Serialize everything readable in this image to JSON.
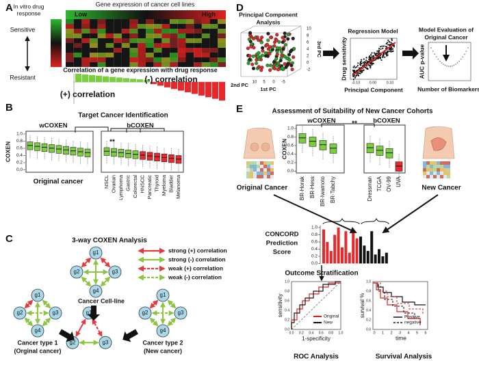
{
  "panels": {
    "a": {
      "label": "A",
      "drug_response": [
        "In vitro drug",
        "response"
      ],
      "sensitive": "Sensitive",
      "resistant": "Resistant",
      "heatmap_title": "Gene expression of cancer cell lines",
      "low": "Low",
      "high": "High",
      "correlation_title": "Correlation of a gene expression with drug response",
      "negative": "(-) correlation",
      "positive": "(+) correlation"
    },
    "b": {
      "label": "B",
      "title": "Target Cancer Identification",
      "group1": "wCOXEN",
      "group2": "bCOXEN",
      "y_axis": "COXEN",
      "yticks": [
        "1.0",
        "0.8",
        "0.6",
        "0.4",
        "0.2",
        "0.0"
      ],
      "x_label": "Original cancer",
      "significance": "**",
      "categories": [
        "NSCL",
        "Ovarian",
        "Lymphoma",
        "Gastric",
        "Colorectal",
        "HNSCC",
        "Pancreatic",
        "Thyroid",
        "Myeloma",
        "Bladder",
        "Melanoma"
      ]
    },
    "c": {
      "label": "C",
      "title": "3-way COXEN Analysis",
      "legend": [
        "strong (+) correlation",
        "strong (-) correlation",
        "weak (+) correlation",
        "weak (-) correlation"
      ],
      "nodes": [
        "g1",
        "g2",
        "g3",
        "g4"
      ],
      "cell_line": "Cancer Cell-line",
      "type1": [
        "Cancer type 1",
        "(Orginal cancer)"
      ],
      "type2": [
        "Cancer type 2",
        "(New cancer)"
      ]
    },
    "d": {
      "label": "D",
      "pca_title": [
        "Principal Component",
        "Analysis"
      ],
      "pc1": "1st PC",
      "pc2": "2nd PC",
      "pc3": "3rd PC",
      "pca_zticks": [
        "10",
        "8",
        "6",
        "4",
        "2",
        "0",
        "-2"
      ],
      "pca_xticks": [
        "10",
        "5",
        "0",
        "-5"
      ],
      "regression_title": "Regression Model",
      "regression_y": "Drug sensitivity",
      "regression_x": "Principal Component",
      "regression_xticks": [
        "-0.10",
        "0.00",
        "0.10"
      ],
      "eval_title": [
        "Model  Evaluation of",
        "Original Cancer"
      ],
      "eval_y": "AUC p-value",
      "eval_x": "Number of Biomarkers"
    },
    "e": {
      "label": "E",
      "title": "Assessment of Suitability of New Cancer Cohorts",
      "group1": "wCOXEN",
      "group2": "bCOXEN",
      "y_axis": "COXEN",
      "yticks": [
        "1.0",
        "0.8",
        "0.6",
        "0.4",
        "0.2",
        "0.0"
      ],
      "significance": "**",
      "categories": [
        "BR-Horak",
        "BR-Hess",
        "BR-Iwamoto",
        "BR-Tabchy",
        "Dressman",
        "TCGA",
        "OV-99",
        "UVA"
      ],
      "original": "Original Cancer",
      "new": "New Cancer",
      "score_title": [
        "CONCORD",
        "Prediction",
        "Score"
      ],
      "score_yticks": [
        "1.0",
        "0.8",
        "0.6",
        "0.4",
        "0.2",
        "0.0"
      ],
      "outcome": "Outcome Stratification",
      "roc_y": "sensitivity",
      "roc_x": "1-specificity",
      "roc_ticks": [
        "0.0",
        "0.2",
        "0.4",
        "0.6",
        "0.8",
        "1.0"
      ],
      "roc_legend": [
        "Original",
        "New"
      ],
      "roc_title": "ROC Analysis",
      "surv_y": "survival %",
      "surv_x": "time",
      "surv_xticks": [
        "0",
        "1",
        "2",
        "3",
        "4",
        "5",
        "6"
      ],
      "surv_yticks": [
        "0.0",
        "0.2",
        "0.4",
        "0.6",
        "0.8",
        "1.0"
      ],
      "surv_legend": [
        "Positive",
        "negative"
      ],
      "surv_title": "Survival Analysis"
    }
  }
}
